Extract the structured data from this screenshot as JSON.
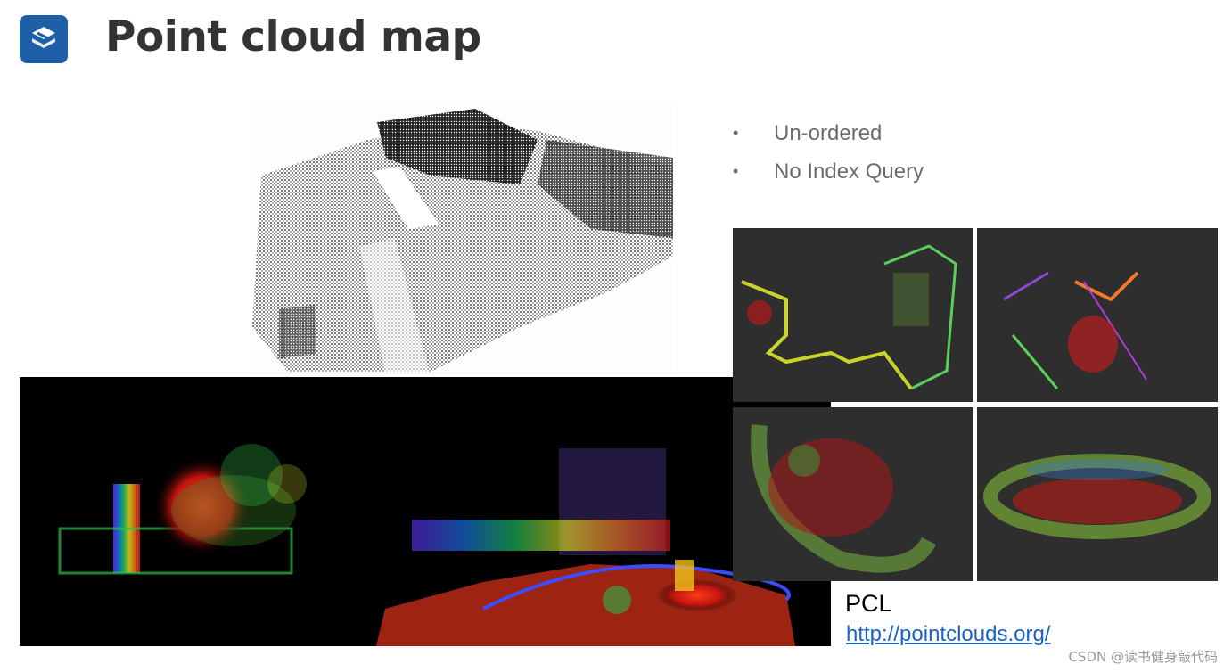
{
  "header": {
    "title": "Point cloud map",
    "logo_icon": "stacked-s-logo-icon",
    "logo_color": "#1f5fa8"
  },
  "bullets": [
    "Un-ordered",
    "No Index Query"
  ],
  "pcl": {
    "label": "PCL",
    "link": "http://pointclouds.org/"
  },
  "watermark": "CSDN @读书健身敲代码",
  "colors": {
    "title": "#333333",
    "bullet_text": "#6b6b6b",
    "link": "#1a64c8",
    "dark_panel": "#2e2e2e"
  }
}
